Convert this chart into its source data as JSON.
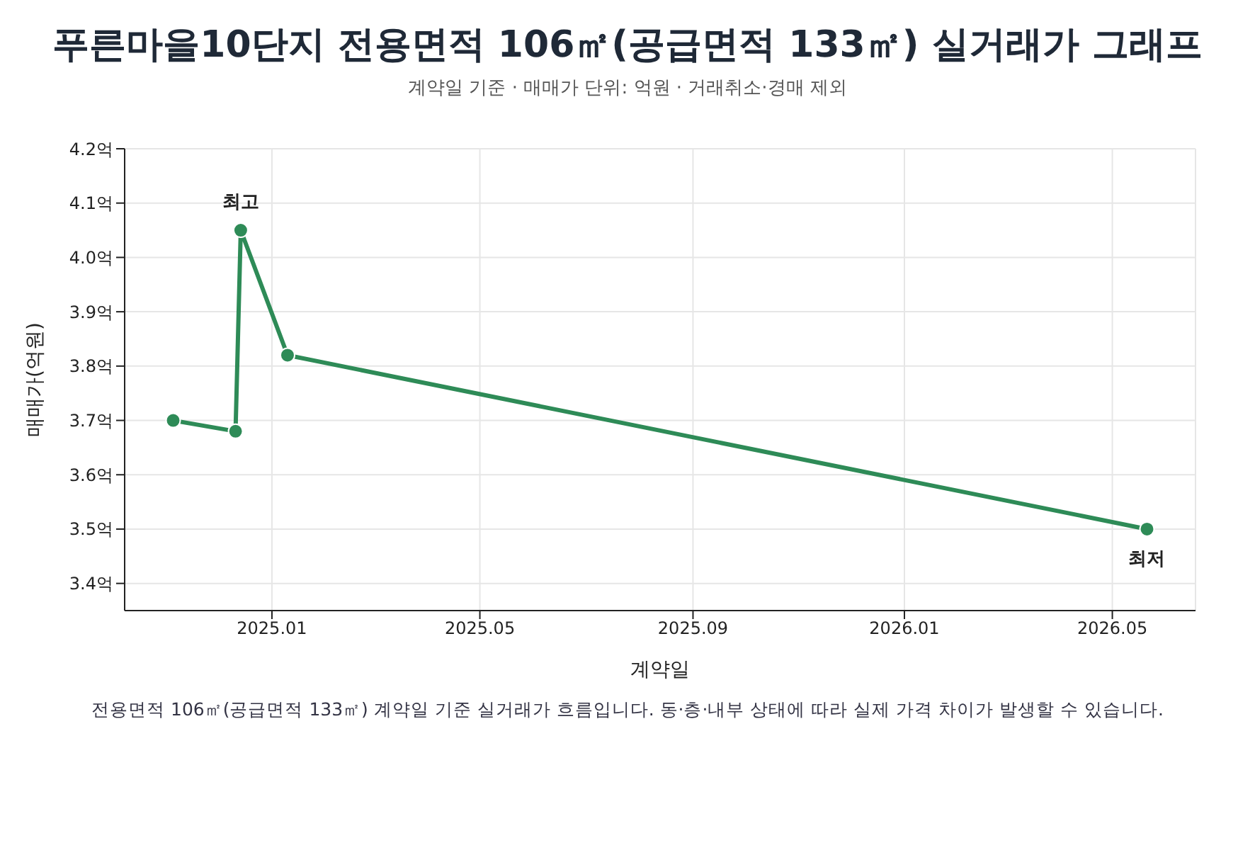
{
  "chart_data": {
    "type": "line",
    "title": "푸른마을10단지 전용면적 106㎡(공급면적 133㎡) 실거래가 그래프",
    "subtitle": "계약일 기준 · 매매가 단위: 억원 · 거래취소·경매 제외",
    "xlabel": "계약일",
    "ylabel": "매매가(억원)",
    "x": [
      "2024-11-05",
      "2024-12-11",
      "2024-12-14",
      "2025-01-10",
      "2026-05-21"
    ],
    "series": [
      {
        "color": "#2e8b57",
        "values": [
          3.7,
          3.68,
          4.05,
          3.82,
          3.5
        ]
      }
    ],
    "xlim": [
      "2024-10-08",
      "2026-06-18"
    ],
    "xticks": [
      {
        "value": "2025-01",
        "label": "2025.01"
      },
      {
        "value": "2025-05",
        "label": "2025.05"
      },
      {
        "value": "2025-09",
        "label": "2025.09"
      },
      {
        "value": "2026-01",
        "label": "2026.01"
      },
      {
        "value": "2026-05",
        "label": "2026.05"
      }
    ],
    "ylim": [
      3.35,
      4.2
    ],
    "yticks": [
      {
        "value": 3.4,
        "label": "3.4억"
      },
      {
        "value": 3.5,
        "label": "3.5억"
      },
      {
        "value": 3.6,
        "label": "3.6억"
      },
      {
        "value": 3.7,
        "label": "3.7억"
      },
      {
        "value": 3.8,
        "label": "3.8억"
      },
      {
        "value": 3.9,
        "label": "3.9억"
      },
      {
        "value": 4.0,
        "label": "4.0억"
      },
      {
        "value": 4.1,
        "label": "4.1억"
      },
      {
        "value": 4.2,
        "label": "4.2억"
      }
    ],
    "grid": true,
    "marker": "circle",
    "line_style": "solid",
    "legend": false,
    "annotations": [
      {
        "text": "최고",
        "x": "2024-12-14",
        "y": 4.05
      },
      {
        "text": "최저",
        "x": "2026-05-21",
        "y": 3.5
      },
      "전용면적 106㎡(공급면적 133㎡) 계약일 기준 실거래가 흐름입니다. 동·층·내부 상태에 따라 실제 가격 차이가 발생할 수 있습니다."
    ]
  }
}
